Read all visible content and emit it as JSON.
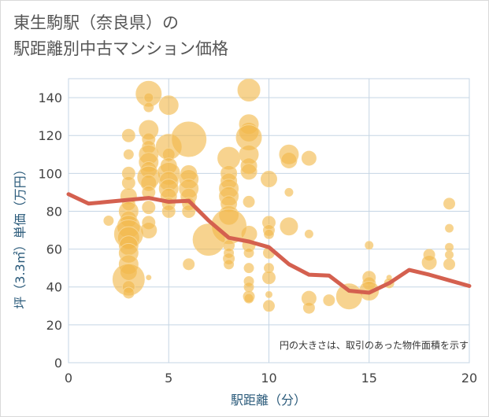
{
  "title_line1": "東生駒駅（奈良県）の",
  "title_line2": "駅距離別中古マンション価格",
  "chart_data": {
    "type": "scatter",
    "title": "東生駒駅（奈良県）の駅距離別中古マンション価格",
    "xlabel": "駅距離（分）",
    "ylabel": "坪（3.3㎡）単価（万円）",
    "xlim": [
      0,
      20
    ],
    "ylim": [
      0,
      150
    ],
    "xticks": [
      0,
      5,
      10,
      15,
      20
    ],
    "yticks": [
      0,
      20,
      40,
      60,
      80,
      100,
      120,
      140
    ],
    "grid": true,
    "annotation": "円の大きさは、取引のあった物件面積を示す",
    "colors": {
      "bubble": "#f2b84b",
      "line": "#d4604f",
      "grid": "#c5d5e4",
      "axis_title": "#2a5a7a"
    },
    "bubbles": [
      {
        "x": 2,
        "y": 75,
        "s": 6
      },
      {
        "x": 3,
        "y": 120,
        "s": 8
      },
      {
        "x": 3,
        "y": 110,
        "s": 6
      },
      {
        "x": 3,
        "y": 100,
        "s": 8
      },
      {
        "x": 3,
        "y": 95,
        "s": 8
      },
      {
        "x": 3,
        "y": 88,
        "s": 10
      },
      {
        "x": 3,
        "y": 84,
        "s": 8
      },
      {
        "x": 3,
        "y": 80,
        "s": 12
      },
      {
        "x": 3,
        "y": 76,
        "s": 10
      },
      {
        "x": 3,
        "y": 72,
        "s": 14
      },
      {
        "x": 3,
        "y": 68,
        "s": 18
      },
      {
        "x": 3,
        "y": 66,
        "s": 14
      },
      {
        "x": 3,
        "y": 62,
        "s": 12
      },
      {
        "x": 3,
        "y": 58,
        "s": 12
      },
      {
        "x": 3,
        "y": 52,
        "s": 12
      },
      {
        "x": 3,
        "y": 48,
        "s": 10
      },
      {
        "x": 3,
        "y": 44,
        "s": 20
      },
      {
        "x": 3,
        "y": 40,
        "s": 8
      },
      {
        "x": 3,
        "y": 37,
        "s": 7
      },
      {
        "x": 4,
        "y": 142,
        "s": 16
      },
      {
        "x": 4,
        "y": 140,
        "s": 6
      },
      {
        "x": 4,
        "y": 135,
        "s": 6
      },
      {
        "x": 4,
        "y": 123,
        "s": 12
      },
      {
        "x": 4,
        "y": 118,
        "s": 8
      },
      {
        "x": 4,
        "y": 114,
        "s": 8
      },
      {
        "x": 4,
        "y": 110,
        "s": 12
      },
      {
        "x": 4,
        "y": 106,
        "s": 12
      },
      {
        "x": 4,
        "y": 102,
        "s": 10
      },
      {
        "x": 4,
        "y": 98,
        "s": 14
      },
      {
        "x": 4,
        "y": 95,
        "s": 10
      },
      {
        "x": 4,
        "y": 90,
        "s": 8
      },
      {
        "x": 4,
        "y": 82,
        "s": 8
      },
      {
        "x": 4,
        "y": 74,
        "s": 8
      },
      {
        "x": 4,
        "y": 70,
        "s": 10
      },
      {
        "x": 4,
        "y": 45,
        "s": 3
      },
      {
        "x": 5,
        "y": 136,
        "s": 12
      },
      {
        "x": 5,
        "y": 114,
        "s": 16
      },
      {
        "x": 5,
        "y": 110,
        "s": 8
      },
      {
        "x": 5,
        "y": 104,
        "s": 10
      },
      {
        "x": 5,
        "y": 100,
        "s": 14
      },
      {
        "x": 5,
        "y": 96,
        "s": 12
      },
      {
        "x": 5,
        "y": 92,
        "s": 12
      },
      {
        "x": 5,
        "y": 88,
        "s": 10
      },
      {
        "x": 5,
        "y": 84,
        "s": 8
      },
      {
        "x": 5,
        "y": 80,
        "s": 8
      },
      {
        "x": 6,
        "y": 118,
        "s": 22
      },
      {
        "x": 6,
        "y": 100,
        "s": 10
      },
      {
        "x": 6,
        "y": 97,
        "s": 12
      },
      {
        "x": 6,
        "y": 92,
        "s": 12
      },
      {
        "x": 6,
        "y": 88,
        "s": 10
      },
      {
        "x": 6,
        "y": 84,
        "s": 8
      },
      {
        "x": 6,
        "y": 80,
        "s": 8
      },
      {
        "x": 6,
        "y": 52,
        "s": 7
      },
      {
        "x": 7,
        "y": 65,
        "s": 20
      },
      {
        "x": 8,
        "y": 108,
        "s": 14
      },
      {
        "x": 8,
        "y": 100,
        "s": 10
      },
      {
        "x": 8,
        "y": 96,
        "s": 10
      },
      {
        "x": 8,
        "y": 92,
        "s": 12
      },
      {
        "x": 8,
        "y": 88,
        "s": 12
      },
      {
        "x": 8,
        "y": 84,
        "s": 10
      },
      {
        "x": 8,
        "y": 78,
        "s": 12
      },
      {
        "x": 8,
        "y": 72,
        "s": 22
      },
      {
        "x": 8,
        "y": 62,
        "s": 7
      },
      {
        "x": 8,
        "y": 58,
        "s": 6
      },
      {
        "x": 8,
        "y": 55,
        "s": 7
      },
      {
        "x": 8,
        "y": 52,
        "s": 6
      },
      {
        "x": 9,
        "y": 144,
        "s": 14
      },
      {
        "x": 9,
        "y": 126,
        "s": 12
      },
      {
        "x": 9,
        "y": 122,
        "s": 12
      },
      {
        "x": 9,
        "y": 119,
        "s": 16
      },
      {
        "x": 9,
        "y": 110,
        "s": 12
      },
      {
        "x": 9,
        "y": 104,
        "s": 10
      },
      {
        "x": 9,
        "y": 101,
        "s": 10
      },
      {
        "x": 9,
        "y": 85,
        "s": 7
      },
      {
        "x": 9,
        "y": 68,
        "s": 10
      },
      {
        "x": 9,
        "y": 62,
        "s": 8
      },
      {
        "x": 9,
        "y": 58,
        "s": 6
      },
      {
        "x": 9,
        "y": 50,
        "s": 6
      },
      {
        "x": 9,
        "y": 43,
        "s": 6
      },
      {
        "x": 9,
        "y": 40,
        "s": 6
      },
      {
        "x": 9,
        "y": 35,
        "s": 7
      },
      {
        "x": 9,
        "y": 34,
        "s": 6
      },
      {
        "x": 10,
        "y": 97,
        "s": 10
      },
      {
        "x": 10,
        "y": 74,
        "s": 8
      },
      {
        "x": 10,
        "y": 70,
        "s": 7
      },
      {
        "x": 10,
        "y": 68,
        "s": 6
      },
      {
        "x": 10,
        "y": 58,
        "s": 7
      },
      {
        "x": 10,
        "y": 50,
        "s": 6
      },
      {
        "x": 10,
        "y": 45,
        "s": 8
      },
      {
        "x": 10,
        "y": 36,
        "s": 4
      },
      {
        "x": 10,
        "y": 30,
        "s": 7
      },
      {
        "x": 11,
        "y": 110,
        "s": 12
      },
      {
        "x": 11,
        "y": 107,
        "s": 10
      },
      {
        "x": 11,
        "y": 90,
        "s": 5
      },
      {
        "x": 11,
        "y": 72,
        "s": 11
      },
      {
        "x": 12,
        "y": 108,
        "s": 9
      },
      {
        "x": 12,
        "y": 68,
        "s": 5
      },
      {
        "x": 12,
        "y": 34,
        "s": 9
      },
      {
        "x": 12,
        "y": 29,
        "s": 7
      },
      {
        "x": 13,
        "y": 33,
        "s": 7
      },
      {
        "x": 14,
        "y": 35,
        "s": 16
      },
      {
        "x": 15,
        "y": 62,
        "s": 5
      },
      {
        "x": 15,
        "y": 45,
        "s": 8
      },
      {
        "x": 15,
        "y": 42,
        "s": 8
      },
      {
        "x": 15,
        "y": 38,
        "s": 12
      },
      {
        "x": 16,
        "y": 45,
        "s": 3
      },
      {
        "x": 16,
        "y": 42,
        "s": 6
      },
      {
        "x": 18,
        "y": 57,
        "s": 7
      },
      {
        "x": 18,
        "y": 53,
        "s": 9
      },
      {
        "x": 19,
        "y": 84,
        "s": 7
      },
      {
        "x": 19,
        "y": 71,
        "s": 5
      },
      {
        "x": 19,
        "y": 61,
        "s": 5
      },
      {
        "x": 19,
        "y": 57,
        "s": 5
      },
      {
        "x": 19,
        "y": 52,
        "s": 7
      }
    ],
    "series": [
      {
        "type": "line",
        "x": [
          0,
          1,
          2,
          3,
          4,
          5,
          6,
          7,
          8,
          9,
          10,
          11,
          12,
          13,
          14,
          15,
          16,
          17,
          18,
          19,
          20
        ],
        "values": [
          89,
          84,
          85,
          86,
          87,
          85,
          85.5,
          75,
          66,
          64,
          61,
          52,
          46.5,
          46,
          38,
          37,
          42,
          49,
          46.5,
          43.5,
          40.5
        ]
      }
    ]
  }
}
